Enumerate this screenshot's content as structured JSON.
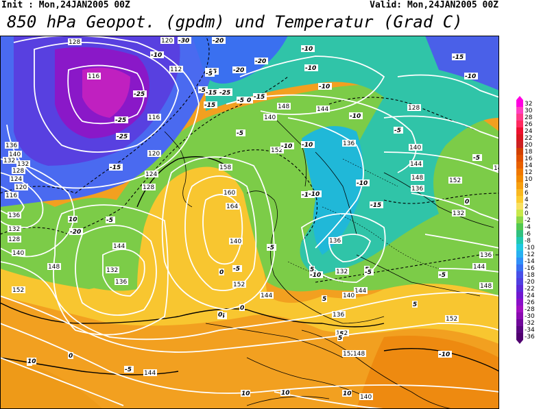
{
  "header": {
    "init": "Init : Mon,24JAN2005 00Z",
    "valid": "Valid: Mon,24JAN2005 00Z",
    "title": "850 hPa Geopot. (gpdm) und Temperatur (Grad C)"
  },
  "legend": {
    "labels": [
      "32",
      "30",
      "28",
      "26",
      "24",
      "22",
      "20",
      "18",
      "16",
      "14",
      "12",
      "10",
      "8",
      "6",
      "4",
      "2",
      "0",
      "-2",
      "-4",
      "-6",
      "-8",
      "-10",
      "-12",
      "-14",
      "-16",
      "-18",
      "-20",
      "-22",
      "-24",
      "-26",
      "-28",
      "-30",
      "-32",
      "-34",
      "-36"
    ],
    "colors": [
      "#ff00e0",
      "#ff40c0",
      "#ff3a8a",
      "#ff2a60",
      "#ee1030",
      "#d81820",
      "#cc2222",
      "#d24000",
      "#e05000",
      "#e86000",
      "#f07800",
      "#f28a00",
      "#f7a010",
      "#f9b820",
      "#fbcc30",
      "#f8e060",
      "#c8e84a",
      "#8cd848",
      "#52c850",
      "#30c080",
      "#20c8b0",
      "#20c8e0",
      "#28b0f0",
      "#3090f8",
      "#3870f0",
      "#4850e8",
      "#5040e0",
      "#5c2ad8",
      "#7018d0",
      "#8a10c8",
      "#a010c0",
      "#8a0ab0",
      "#70089a",
      "#5a0680",
      "#500070"
    ]
  },
  "map_labels": {
    "geopotential": [
      "128",
      "120",
      "112",
      "116",
      "116",
      "120",
      "124",
      "128",
      "132",
      "136",
      "140",
      "132",
      "128",
      "124",
      "120",
      "116",
      "136",
      "132",
      "128",
      "140",
      "144",
      "132",
      "136",
      "148",
      "152",
      "158",
      "160",
      "164",
      "140",
      "152",
      "144",
      "136",
      "132",
      "140",
      "148",
      "152",
      "144",
      "136",
      "128",
      "140",
      "144",
      "148",
      "136",
      "152",
      "132",
      "140",
      "136",
      "144",
      "148",
      "152",
      "144",
      "140",
      "152",
      "136",
      "152",
      "148",
      "152",
      "140",
      "144"
    ],
    "temperature": [
      "-25",
      "-25",
      "-30",
      "-20",
      "-25",
      "-15",
      "-5",
      "-20",
      "-20",
      "-15",
      "-15",
      "-10",
      "-10",
      "-10",
      "-25",
      "-25",
      "-20",
      "-15",
      "-10",
      "-15",
      "-10",
      "-5",
      "-5",
      "-10",
      "-10",
      "-15",
      "-10",
      "-10",
      "-5",
      "-10",
      "-5",
      "5",
      "0",
      "-5",
      "5",
      "-5",
      "0",
      "-10",
      "-10",
      "-5",
      "0",
      "0",
      "-5",
      "5",
      "-10",
      "5",
      "5",
      "0",
      "0",
      "-5",
      "10",
      "10",
      "10",
      "10",
      "5",
      "10",
      "-5",
      "-20",
      "-15",
      "-5",
      "-10",
      "-15",
      "-5"
    ]
  }
}
